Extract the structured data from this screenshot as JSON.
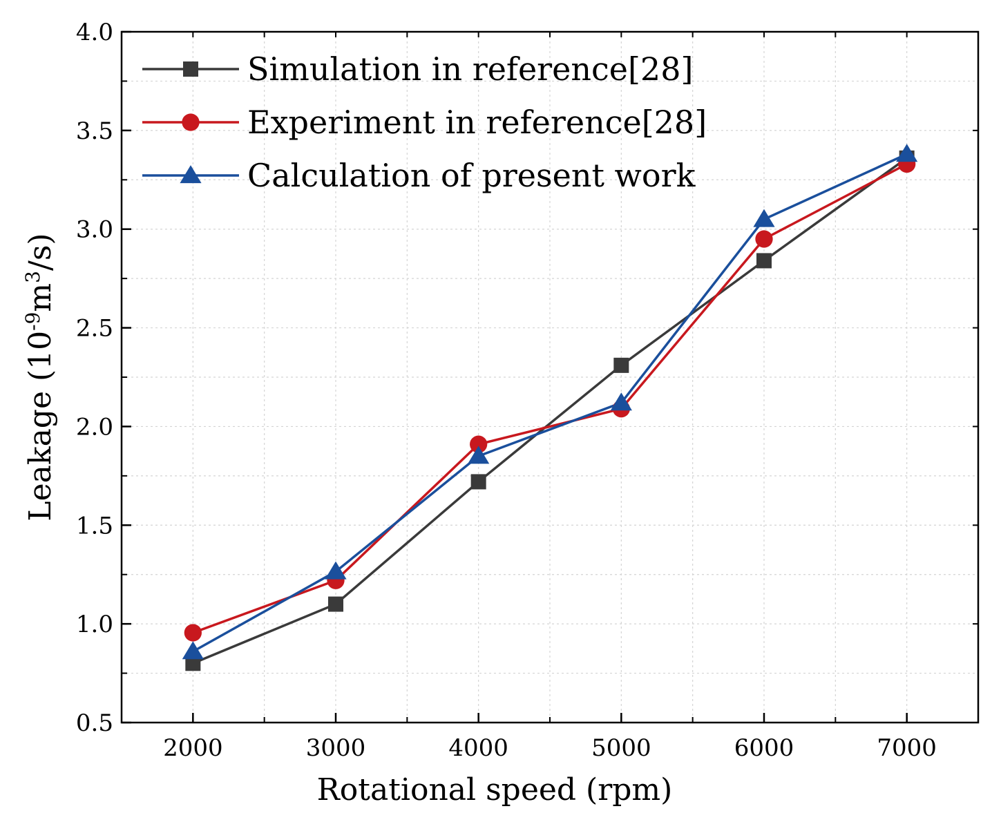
{
  "chart_data": {
    "type": "line",
    "title": "",
    "xlabel": "Rotational speed (rpm)",
    "ylabel": {
      "prefix": "Leakage (10",
      "exp1": "-9",
      "mid": "m",
      "exp2": "3",
      "suffix": "/s)"
    },
    "xlim": [
      1500,
      7500
    ],
    "ylim": [
      0.5,
      4.0
    ],
    "x": [
      2000,
      3000,
      4000,
      5000,
      6000,
      7000
    ],
    "x_ticks": [
      "2000",
      "3000",
      "4000",
      "5000",
      "6000",
      "7000"
    ],
    "y_ticks": [
      "0.5",
      "1.0",
      "1.5",
      "2.0",
      "2.5",
      "3.0",
      "3.5",
      "4.0"
    ],
    "grid": true,
    "legend_position": "top-left",
    "series": [
      {
        "name": "Simulation in reference[28]",
        "color": "#3a3a3a",
        "marker": "square",
        "values": [
          0.8,
          1.1,
          1.72,
          2.31,
          2.84,
          3.36
        ]
      },
      {
        "name": "Experiment in reference[28]",
        "color": "#c8181e",
        "marker": "circle",
        "values": [
          0.955,
          1.22,
          1.91,
          2.09,
          2.95,
          3.33
        ]
      },
      {
        "name": "Calculation of present work",
        "color": "#1a4f9c",
        "marker": "triangle",
        "values": [
          0.86,
          1.265,
          1.85,
          2.12,
          3.05,
          3.38
        ]
      }
    ]
  }
}
